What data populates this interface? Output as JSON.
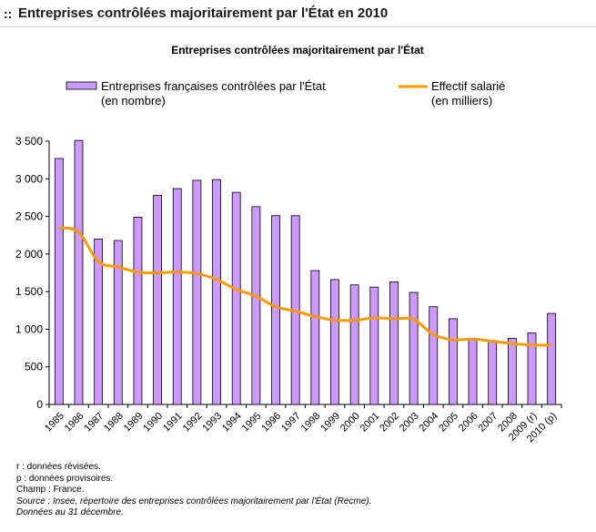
{
  "page_title": ":: Entreprises contrôlées majoritairement par l'État en 2010",
  "chart_data": {
    "type": "bar",
    "title": "Entreprises contrôlées majoritairement par l'État",
    "xlabel": "",
    "ylabel": "",
    "ylim": [
      0,
      3500
    ],
    "yticks": [
      "0",
      "500",
      "1 000",
      "1 500",
      "2 000",
      "2 500",
      "3 000",
      "3 500"
    ],
    "ytick_values": [
      0,
      500,
      1000,
      1500,
      2000,
      2500,
      3000,
      3500
    ],
    "categories": [
      "1985",
      "1986",
      "1987",
      "1988",
      "1989",
      "1990",
      "1991",
      "1992",
      "1993",
      "1994",
      "1995",
      "1996",
      "1997",
      "1998",
      "1999",
      "2000",
      "2001",
      "2002",
      "2003",
      "2004",
      "2005",
      "2006",
      "2007",
      "2008",
      "2009 (r)",
      "2010 (p)"
    ],
    "legend_position": "top",
    "grid": false,
    "series": [
      {
        "name_lines": [
          "Entreprises françaises contrôlées par l'État",
          "(en nombre)"
        ],
        "type": "bar",
        "color": "#cc99ff",
        "values": [
          3270,
          3510,
          2200,
          2180,
          2490,
          2780,
          2870,
          2980,
          2990,
          2820,
          2630,
          2510,
          2510,
          1780,
          1660,
          1590,
          1560,
          1630,
          1490,
          1300,
          1140,
          860,
          850,
          880,
          950,
          1210
        ]
      },
      {
        "name_lines": [
          "Effectif salarié",
          "(en milliers)"
        ],
        "type": "line",
        "color": "#ff9900",
        "values": [
          2350,
          2290,
          1900,
          1830,
          1760,
          1750,
          1760,
          1740,
          1660,
          1530,
          1440,
          1300,
          1240,
          1170,
          1120,
          1120,
          1150,
          1140,
          1130,
          930,
          860,
          870,
          840,
          810,
          790,
          790
        ]
      }
    ]
  },
  "notes": {
    "revised": "r : données révisées.",
    "provisional": "p : données provisoires.",
    "scope": "Champ : France.",
    "source": "Source : Insee, répertoire des entreprises contrôlées majoritairement par l'État (Recme).",
    "date": "Données au 31 décembre."
  }
}
